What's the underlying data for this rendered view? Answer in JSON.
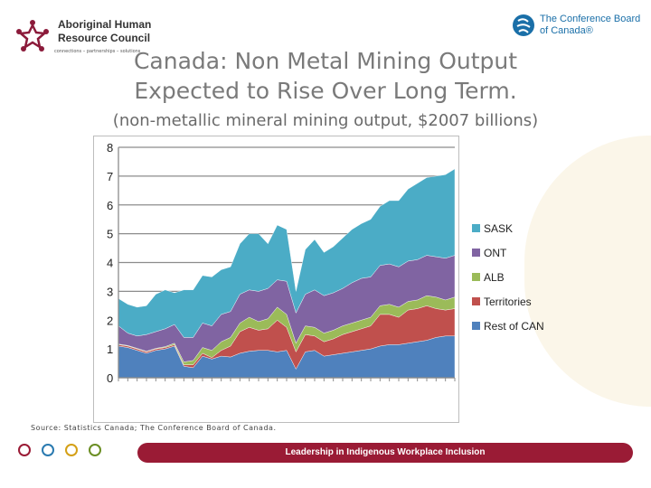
{
  "header": {
    "left_logo": {
      "line1": "Aboriginal Human",
      "line2": "Resource Council",
      "tagline": "connections – partnerships – solutions"
    },
    "right_logo": {
      "line1": "The Conference Board",
      "line2": "of Canada®"
    }
  },
  "title_line1": "Canada: Non Metal Mining Output",
  "title_line2": "Expected to Rise Over Long Term.",
  "subtitle": "(non-metallic mineral mining output, $2007 billions)",
  "source": "Source: Statistics Canada; The Conference Board of Canada.",
  "footer": {
    "banner": "Leadership in Indigenous Workplace Inclusion",
    "circle_colors": [
      "#9a1b35",
      "#2a7ab0",
      "#d4a017",
      "#6b8e23"
    ]
  },
  "chart_data": {
    "type": "area",
    "stacked": true,
    "ylim": [
      0,
      8
    ],
    "yticks": [
      0,
      1,
      2,
      3,
      4,
      5,
      6,
      7,
      8
    ],
    "grid": true,
    "legend_position": "right",
    "series": [
      {
        "name": "Rest of CAN",
        "color": "#4f81bd",
        "values": [
          1.1,
          1.05,
          0.95,
          0.85,
          0.95,
          1.0,
          1.1,
          0.4,
          0.35,
          0.75,
          0.65,
          0.75,
          0.72,
          0.85,
          0.92,
          0.95,
          0.95,
          0.9,
          0.95,
          0.3,
          0.9,
          0.95,
          0.75,
          0.8,
          0.85,
          0.9,
          0.95,
          1.0,
          1.1,
          1.15,
          1.15,
          1.2,
          1.25,
          1.3,
          1.4,
          1.45,
          1.45
        ]
      },
      {
        "name": "Territories",
        "color": "#c0504d",
        "values": [
          0.05,
          0.05,
          0.05,
          0.05,
          0.05,
          0.05,
          0.05,
          0.05,
          0.1,
          0.1,
          0.05,
          0.2,
          0.38,
          0.75,
          0.83,
          0.7,
          0.75,
          1.1,
          0.8,
          0.6,
          0.6,
          0.5,
          0.5,
          0.55,
          0.65,
          0.7,
          0.75,
          0.8,
          1.1,
          1.05,
          0.95,
          1.15,
          1.15,
          1.2,
          1.0,
          0.9,
          0.95
        ]
      },
      {
        "name": "ALB",
        "color": "#9bbb59",
        "values": [
          0.02,
          0.02,
          0.02,
          0.02,
          0.02,
          0.03,
          0.05,
          0.1,
          0.15,
          0.2,
          0.25,
          0.3,
          0.3,
          0.3,
          0.35,
          0.3,
          0.35,
          0.45,
          0.45,
          0.3,
          0.3,
          0.3,
          0.3,
          0.3,
          0.3,
          0.3,
          0.3,
          0.3,
          0.3,
          0.35,
          0.35,
          0.3,
          0.3,
          0.35,
          0.4,
          0.35,
          0.4
        ]
      },
      {
        "name": "ONT",
        "color": "#8064a2",
        "values": [
          0.63,
          0.43,
          0.43,
          0.58,
          0.58,
          0.62,
          0.65,
          0.85,
          0.8,
          0.85,
          0.85,
          0.95,
          0.9,
          1.0,
          0.95,
          1.05,
          1.05,
          0.95,
          1.15,
          1.05,
          1.1,
          1.3,
          1.3,
          1.3,
          1.3,
          1.4,
          1.45,
          1.4,
          1.4,
          1.4,
          1.4,
          1.4,
          1.4,
          1.4,
          1.4,
          1.45,
          1.45
        ]
      },
      {
        "name": "SASK",
        "color": "#4bacc6",
        "values": [
          0.95,
          1.0,
          1.0,
          1.0,
          1.3,
          1.35,
          1.1,
          1.65,
          1.65,
          1.65,
          1.7,
          1.55,
          1.55,
          1.75,
          1.95,
          2.0,
          1.55,
          1.9,
          1.8,
          0.75,
          1.55,
          1.75,
          1.5,
          1.6,
          1.75,
          1.85,
          1.9,
          2.0,
          2.05,
          2.2,
          2.3,
          2.5,
          2.65,
          2.7,
          2.8,
          2.9,
          3.0
        ]
      }
    ]
  }
}
